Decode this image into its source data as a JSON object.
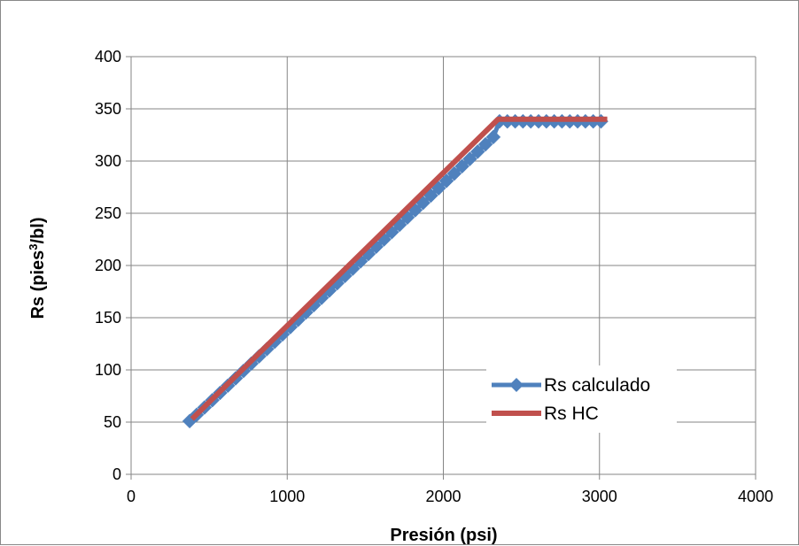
{
  "chart_data": {
    "type": "line",
    "title": "",
    "xlabel": "Presión (psi)",
    "ylabel_prefix": "Rs (pies",
    "ylabel_sup": "3",
    "ylabel_suffix": "/bl)",
    "xlim": [
      0,
      4000
    ],
    "ylim": [
      0,
      400
    ],
    "x_ticks": [
      0,
      1000,
      2000,
      3000,
      4000
    ],
    "y_ticks": [
      0,
      50,
      100,
      150,
      200,
      250,
      300,
      350,
      400
    ],
    "grid": true,
    "legend_position": "lower-right",
    "series": [
      {
        "name": "Rs calculado",
        "color": "#4F81BD",
        "marker": "diamond",
        "x": [
          375,
          420,
          470,
          520,
          570,
          620,
          670,
          720,
          770,
          820,
          870,
          920,
          970,
          1020,
          1070,
          1120,
          1170,
          1220,
          1270,
          1320,
          1370,
          1420,
          1470,
          1520,
          1570,
          1620,
          1670,
          1720,
          1770,
          1820,
          1870,
          1920,
          1970,
          2020,
          2070,
          2120,
          2170,
          2220,
          2270,
          2320,
          2360,
          2410,
          2460,
          2510,
          2560,
          2610,
          2660,
          2710,
          2760,
          2810,
          2860,
          2910,
          2960,
          3010
        ],
        "y": [
          51,
          57,
          64,
          71,
          78,
          85,
          92,
          99,
          106,
          113,
          120,
          127,
          134,
          141,
          148,
          155,
          162,
          169,
          176,
          183,
          190,
          197,
          204,
          211,
          218,
          225,
          232,
          239,
          246,
          253,
          260,
          267,
          274,
          281,
          288,
          295,
          302,
          309,
          316,
          323,
          338,
          338,
          338,
          338,
          338,
          338,
          338,
          338,
          338,
          338,
          338,
          338,
          338,
          338
        ]
      },
      {
        "name": "Rs HC",
        "color": "#C0504D",
        "marker": "none",
        "x": [
          390,
          2350,
          3050
        ],
        "y": [
          53,
          340,
          340
        ]
      }
    ]
  }
}
